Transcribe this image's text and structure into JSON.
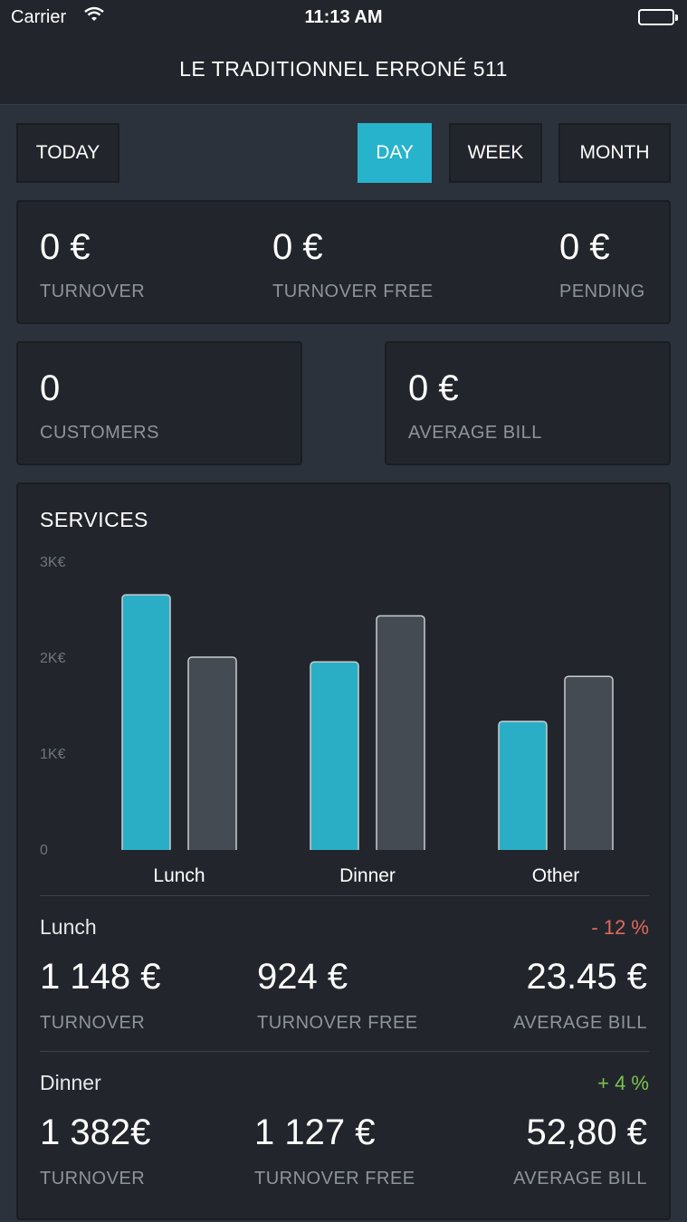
{
  "status_bar": {
    "carrier": "Carrier",
    "time": "11:13 AM"
  },
  "header": {
    "title": "LE TRADITIONNEL ERRONÉ 511"
  },
  "toolbar": {
    "today_label": "TODAY",
    "periods": [
      "DAY",
      "WEEK",
      "MONTH"
    ],
    "active_period": "DAY"
  },
  "summary": {
    "turnover": {
      "value": "0 €",
      "label": "TURNOVER"
    },
    "turnover_free": {
      "value": "0 €",
      "label": "TURNOVER FREE"
    },
    "pending": {
      "value": "0 €",
      "label": "PENDING"
    },
    "customers": {
      "value": "0",
      "label": "CUSTOMERS"
    },
    "average_bill": {
      "value": "0 €",
      "label": "AVERAGE BILL"
    }
  },
  "services": {
    "title": "SERVICES",
    "rows": [
      {
        "name": "Lunch",
        "delta": "- 12 %",
        "delta_color": "#e0695c",
        "turnover": "1 148 €",
        "turnover_label": "TURNOVER",
        "turnover_free": "924 €",
        "turnover_free_label": "TURNOVER FREE",
        "average_bill": "23.45 €",
        "average_bill_label": "AVERAGE BILL"
      },
      {
        "name": "Dinner",
        "delta": "+ 4 %",
        "delta_color": "#7cc24f",
        "turnover": "1 382€",
        "turnover_label": "TURNOVER",
        "turnover_free": "1 127 €",
        "turnover_free_label": "TURNOVER FREE",
        "average_bill": "52,80 €",
        "average_bill_label": "AVERAGE BILL"
      }
    ]
  },
  "colors": {
    "accent": "#27b3cc",
    "secondary_bar": "#454b53"
  },
  "chart_data": {
    "type": "bar",
    "categories": [
      "Lunch",
      "Dinner",
      "Other"
    ],
    "series": [
      {
        "values": [
          2650,
          1950,
          1330
        ],
        "color": "#2aaec6"
      },
      {
        "values": [
          2000,
          2430,
          1800
        ],
        "color": "#454b53"
      }
    ],
    "ylim": [
      0,
      3000
    ],
    "yticks": [
      0,
      1000,
      2000,
      3000
    ],
    "ytick_labels": [
      "0",
      "1K€",
      "2K€",
      "3K€"
    ]
  }
}
